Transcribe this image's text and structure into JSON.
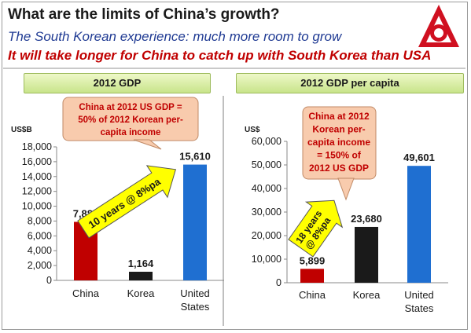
{
  "title": "What are the limits of China’s growth?",
  "subtitle1": "The South Korean experience: much more room to grow",
  "subtitle2": "It will take longer for China to catch up with South Korea than USA",
  "colors": {
    "china": "#c00000",
    "korea": "#1a1a1a",
    "us": "#1f6fd1",
    "callout": "#f8cbad",
    "arrow": "#ffff00"
  },
  "chart_data": [
    {
      "type": "bar",
      "title": "2012 GDP",
      "unit": "US$B",
      "categories": [
        "China",
        "Korea",
        "United States"
      ],
      "values": [
        7889,
        1164,
        15610
      ],
      "value_labels": [
        "7,889",
        "1,164",
        "15,610"
      ],
      "ylim": [
        0,
        18000
      ],
      "yticks": [
        "0",
        "2,000",
        "4,000",
        "6,000",
        "8,000",
        "10,000",
        "12,000",
        "14,000",
        "16,000",
        "18,000"
      ],
      "callout": "China at 2012 US GDP = 50% of 2012 Korean per-capita income",
      "callout_lines": [
        "China at 2012 US GDP =",
        "50% of 2012 Korean per-",
        "capita income"
      ],
      "arrow_label": "10 years @ 8%pa"
    },
    {
      "type": "bar",
      "title": "2012 GDP per capita",
      "unit": "US$",
      "categories": [
        "China",
        "Korea",
        "United States"
      ],
      "values": [
        5899,
        23680,
        49601
      ],
      "value_labels": [
        "5,899",
        "23,680",
        "49,601"
      ],
      "ylim": [
        0,
        60000
      ],
      "yticks": [
        "0",
        "10,000",
        "20,000",
        "30,000",
        "40,000",
        "50,000",
        "60,000"
      ],
      "callout": "China at 2012 Korean per-capita income = 150% of 2012 US GDP",
      "callout_lines": [
        "China at 2012",
        "Korean per-",
        "capita income",
        "= 150% of",
        "2012 US GDP"
      ],
      "arrow_label_lines": [
        "18 years",
        "@ 8%pa"
      ]
    }
  ]
}
